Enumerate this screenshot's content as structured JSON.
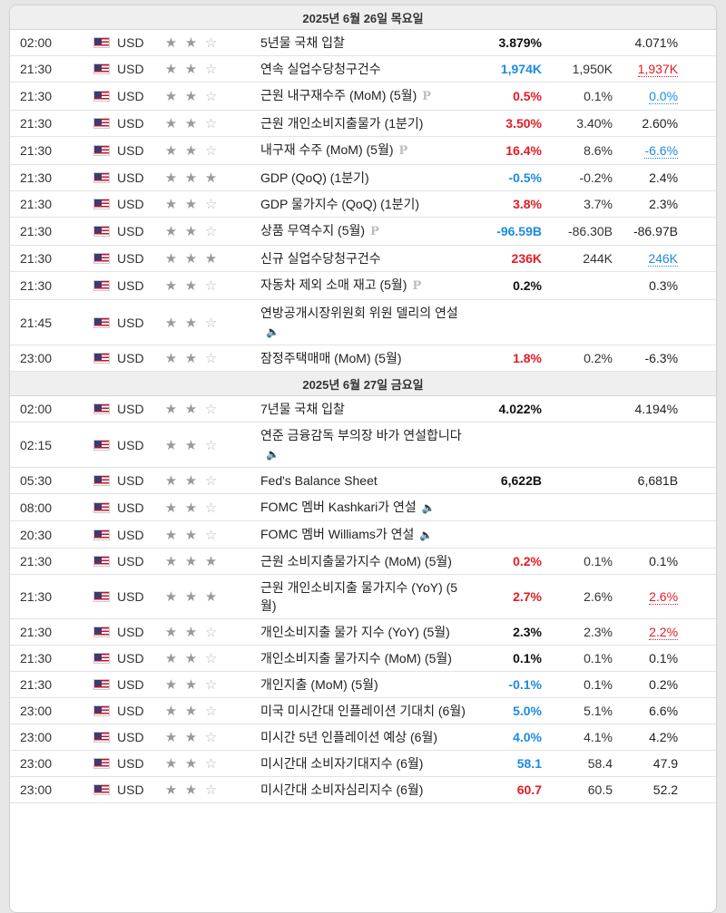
{
  "currency_label": "USD",
  "icons": {
    "flag": "us-flag-icon",
    "star": "star-icon",
    "preliminary": "p-badge-icon",
    "speech": "speaker-icon"
  },
  "colors": {
    "positive": "#e31b23",
    "negative": "#1c8bdf"
  },
  "days": [
    {
      "title": "2025년 6월 26일 목요일",
      "events": [
        {
          "time": "02:00",
          "imp": 2,
          "name": "5년물 국채 입찰",
          "icon": "",
          "actual": "3.879%",
          "actual_style": "neu",
          "forecast": "",
          "previous": "4.071%",
          "previous_style": ""
        },
        {
          "time": "21:30",
          "imp": 2,
          "name": "연속 실업수당청구건수",
          "icon": "",
          "actual": "1,974K",
          "actual_style": "neg",
          "forecast": "1,950K",
          "previous": "1,937K",
          "previous_style": "red"
        },
        {
          "time": "21:30",
          "imp": 2,
          "name": "근원 내구재수주 (MoM) (5월)",
          "icon": "P",
          "actual": "0.5%",
          "actual_style": "pos",
          "forecast": "0.1%",
          "previous": "0.0%",
          "previous_style": "blue"
        },
        {
          "time": "21:30",
          "imp": 2,
          "name": "근원 개인소비지출물가 (1분기)",
          "icon": "",
          "actual": "3.50%",
          "actual_style": "pos",
          "forecast": "3.40%",
          "previous": "2.60%",
          "previous_style": ""
        },
        {
          "time": "21:30",
          "imp": 2,
          "name": "내구재 수주 (MoM) (5월)",
          "icon": "P",
          "actual": "16.4%",
          "actual_style": "pos",
          "forecast": "8.6%",
          "previous": "-6.6%",
          "previous_style": "blue"
        },
        {
          "time": "21:30",
          "imp": 3,
          "name": "GDP (QoQ) (1분기)",
          "icon": "",
          "actual": "-0.5%",
          "actual_style": "neg",
          "forecast": "-0.2%",
          "previous": "2.4%",
          "previous_style": ""
        },
        {
          "time": "21:30",
          "imp": 2,
          "name": "GDP 물가지수 (QoQ) (1분기)",
          "icon": "",
          "actual": "3.8%",
          "actual_style": "pos",
          "forecast": "3.7%",
          "previous": "2.3%",
          "previous_style": ""
        },
        {
          "time": "21:30",
          "imp": 2,
          "name": "상품 무역수지 (5월)",
          "icon": "P",
          "actual": "-96.59B",
          "actual_style": "neg",
          "forecast": "-86.30B",
          "previous": "-86.97B",
          "previous_style": ""
        },
        {
          "time": "21:30",
          "imp": 3,
          "name": "신규 실업수당청구건수",
          "icon": "",
          "actual": "236K",
          "actual_style": "pos",
          "forecast": "244K",
          "previous": "246K",
          "previous_style": "blue"
        },
        {
          "time": "21:30",
          "imp": 2,
          "name": "자동차 제외 소매 재고 (5월)",
          "icon": "P",
          "actual": "0.2%",
          "actual_style": "neu",
          "forecast": "",
          "previous": "0.3%",
          "previous_style": ""
        },
        {
          "time": "21:45",
          "imp": 2,
          "name": "연방공개시장위원회 위원 델리의 연설",
          "icon": "S",
          "actual": "",
          "actual_style": "neu",
          "forecast": "",
          "previous": "",
          "previous_style": ""
        },
        {
          "time": "23:00",
          "imp": 2,
          "name": "잠정주택매매 (MoM) (5월)",
          "icon": "",
          "actual": "1.8%",
          "actual_style": "pos",
          "forecast": "0.2%",
          "previous": "-6.3%",
          "previous_style": ""
        }
      ]
    },
    {
      "title": "2025년 6월 27일 금요일",
      "events": [
        {
          "time": "02:00",
          "imp": 2,
          "name": "7년물 국채 입찰",
          "icon": "",
          "actual": "4.022%",
          "actual_style": "neu",
          "forecast": "",
          "previous": "4.194%",
          "previous_style": ""
        },
        {
          "time": "02:15",
          "imp": 2,
          "name": "연준 금융감독 부의장 바가 연설합니다",
          "icon": "S",
          "actual": "",
          "actual_style": "neu",
          "forecast": "",
          "previous": "",
          "previous_style": ""
        },
        {
          "time": "05:30",
          "imp": 2,
          "name": "Fed's Balance Sheet",
          "icon": "",
          "actual": "6,622B",
          "actual_style": "neu",
          "forecast": "",
          "previous": "6,681B",
          "previous_style": ""
        },
        {
          "time": "08:00",
          "imp": 2,
          "name": "FOMC 멤버 Kashkari가 연설",
          "icon": "S",
          "actual": "",
          "actual_style": "neu",
          "forecast": "",
          "previous": "",
          "previous_style": ""
        },
        {
          "time": "20:30",
          "imp": 2,
          "name": "FOMC 멤버 Williams가 연설",
          "icon": "S",
          "actual": "",
          "actual_style": "neu",
          "forecast": "",
          "previous": "",
          "previous_style": ""
        },
        {
          "time": "21:30",
          "imp": 3,
          "name": "근원 소비지출물가지수 (MoM) (5월)",
          "icon": "",
          "actual": "0.2%",
          "actual_style": "pos",
          "forecast": "0.1%",
          "previous": "0.1%",
          "previous_style": ""
        },
        {
          "time": "21:30",
          "imp": 3,
          "name": "근원 개인소비지출 물가지수 (YoY) (5월)",
          "icon": "",
          "actual": "2.7%",
          "actual_style": "pos",
          "forecast": "2.6%",
          "previous": "2.6%",
          "previous_style": "red"
        },
        {
          "time": "21:30",
          "imp": 2,
          "name": "개인소비지출 물가 지수 (YoY) (5월)",
          "icon": "",
          "actual": "2.3%",
          "actual_style": "neu",
          "forecast": "2.3%",
          "previous": "2.2%",
          "previous_style": "red"
        },
        {
          "time": "21:30",
          "imp": 2,
          "name": "개인소비지출 물가지수 (MoM) (5월)",
          "icon": "",
          "actual": "0.1%",
          "actual_style": "neu",
          "forecast": "0.1%",
          "previous": "0.1%",
          "previous_style": ""
        },
        {
          "time": "21:30",
          "imp": 2,
          "name": "개인지출 (MoM) (5월)",
          "icon": "",
          "actual": "-0.1%",
          "actual_style": "neg",
          "forecast": "0.1%",
          "previous": "0.2%",
          "previous_style": ""
        },
        {
          "time": "23:00",
          "imp": 2,
          "name": "미국 미시간대 인플레이션 기대치 (6월)",
          "icon": "",
          "actual": "5.0%",
          "actual_style": "neg",
          "forecast": "5.1%",
          "previous": "6.6%",
          "previous_style": ""
        },
        {
          "time": "23:00",
          "imp": 2,
          "name": "미시간 5년 인플레이션 예상 (6월)",
          "icon": "",
          "actual": "4.0%",
          "actual_style": "neg",
          "forecast": "4.1%",
          "previous": "4.2%",
          "previous_style": ""
        },
        {
          "time": "23:00",
          "imp": 2,
          "name": "미시간대 소비자기대지수 (6월)",
          "icon": "",
          "actual": "58.1",
          "actual_style": "neg",
          "forecast": "58.4",
          "previous": "47.9",
          "previous_style": ""
        },
        {
          "time": "23:00",
          "imp": 2,
          "name": "미시간대 소비자심리지수 (6월)",
          "icon": "",
          "actual": "60.7",
          "actual_style": "pos",
          "forecast": "60.5",
          "previous": "52.2",
          "previous_style": ""
        }
      ]
    }
  ]
}
